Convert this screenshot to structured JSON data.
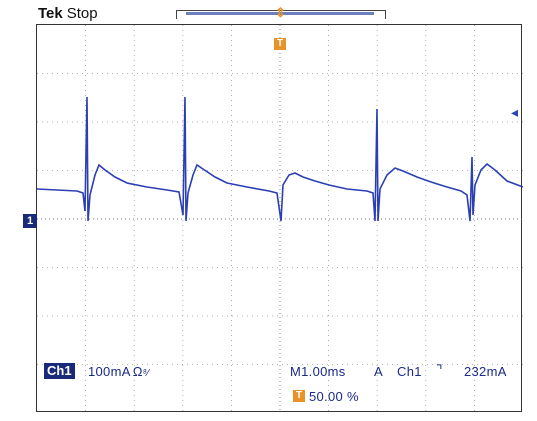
{
  "header": {
    "brand": "Tek",
    "run_state": "Stop"
  },
  "markers": {
    "channel_marker": "1",
    "trigger_marker": "T",
    "trigger_position_marker": "T"
  },
  "readouts": {
    "channel_badge": "Ch1",
    "channel_scale": "100mA",
    "channel_units_icon": "Ω",
    "timebase": "M1.00ms",
    "acquire_mode": "A",
    "trigger_source": "Ch1",
    "trigger_slope_icon": "falling-edge",
    "trigger_slope_glyph": "⌝",
    "trigger_level": "232mA",
    "trigger_position": "50.00 %"
  },
  "colors": {
    "trace": "#2b3fb5",
    "trigger": "#e9922a",
    "grid": "#9a9a9a",
    "text": "#1a2a8a"
  }
}
